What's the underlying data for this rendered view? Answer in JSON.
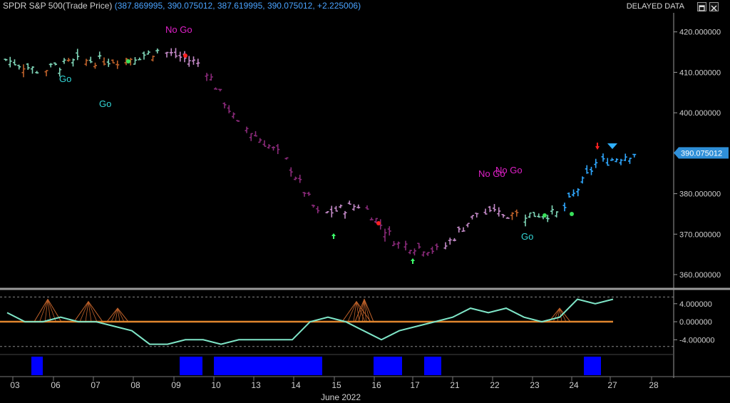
{
  "header": {
    "symbol_label": "SPDR S&P 500",
    "price_type": "(Trade Price)",
    "ohlc_values": "(387.869995, 390.075012, 387.619995, 390.075012, +2.225006)",
    "delayed": "DELAYED DATA"
  },
  "colors": {
    "background": "#000000",
    "go_strong": "#2fa8ff",
    "go_weak": "#7fd6b8",
    "nogo_strong": "#8a2a7a",
    "nogo_weak": "#c48ac8",
    "neutral": "#c0622a",
    "go_text": "#33d6d6",
    "nogo_text": "#e020c8",
    "oscillator": "#7fe6c8",
    "zero_line": "#e0852e",
    "volume": "#0000ff",
    "price_tag": "#2f8fd8"
  },
  "chart_data": [
    {
      "type": "candlestick",
      "title": "SPDR S&P 500",
      "ylim": [
        357,
        424
      ],
      "y_ticks": [
        "420.000000",
        "410.000000",
        "400.000000",
        "380.000000",
        "370.000000",
        "360.000000"
      ],
      "last_price": "390.075012",
      "x_dates": [
        "03",
        "06",
        "07",
        "08",
        "09",
        "10",
        "13",
        "14",
        "15",
        "16",
        "17",
        "21",
        "22",
        "23",
        "24",
        "27",
        "28"
      ],
      "x_month_label": "June 2022",
      "daily_closes": [
        410.5,
        412.8,
        413.0,
        415.2,
        412.3,
        397.0,
        390.0,
        375.0,
        377.2,
        367.5,
        366.0,
        375.2,
        374.8,
        375.0,
        387.5,
        390.1
      ],
      "annotations": [
        {
          "text": "No Go",
          "date": "08",
          "price": 422
        },
        {
          "text": "Go",
          "date": "06",
          "price": 412
        },
        {
          "text": "Go",
          "date": "07",
          "price": 406
        },
        {
          "text": "No Go",
          "date": "22",
          "price": 383
        },
        {
          "text": "No Go",
          "date": "22",
          "price": 384
        },
        {
          "text": "Go",
          "date": "23",
          "price": 369.5
        }
      ]
    },
    {
      "type": "line",
      "title": "oscillator",
      "ylim": [
        -6.8,
        6.5
      ],
      "y_ticks": [
        "4.000000",
        "0.000000",
        "-4.000000"
      ],
      "dashed_levels": [
        5.5,
        0,
        -5.5
      ],
      "values": [
        2,
        0,
        0,
        1,
        0,
        0,
        -1,
        -2,
        -5,
        -5,
        -4,
        -4,
        -5,
        -4,
        -4,
        -4,
        -4,
        0,
        1,
        0,
        -2,
        -4,
        -2,
        -1,
        0,
        1,
        3,
        2,
        3,
        1,
        0,
        1,
        5,
        4,
        5
      ]
    }
  ]
}
